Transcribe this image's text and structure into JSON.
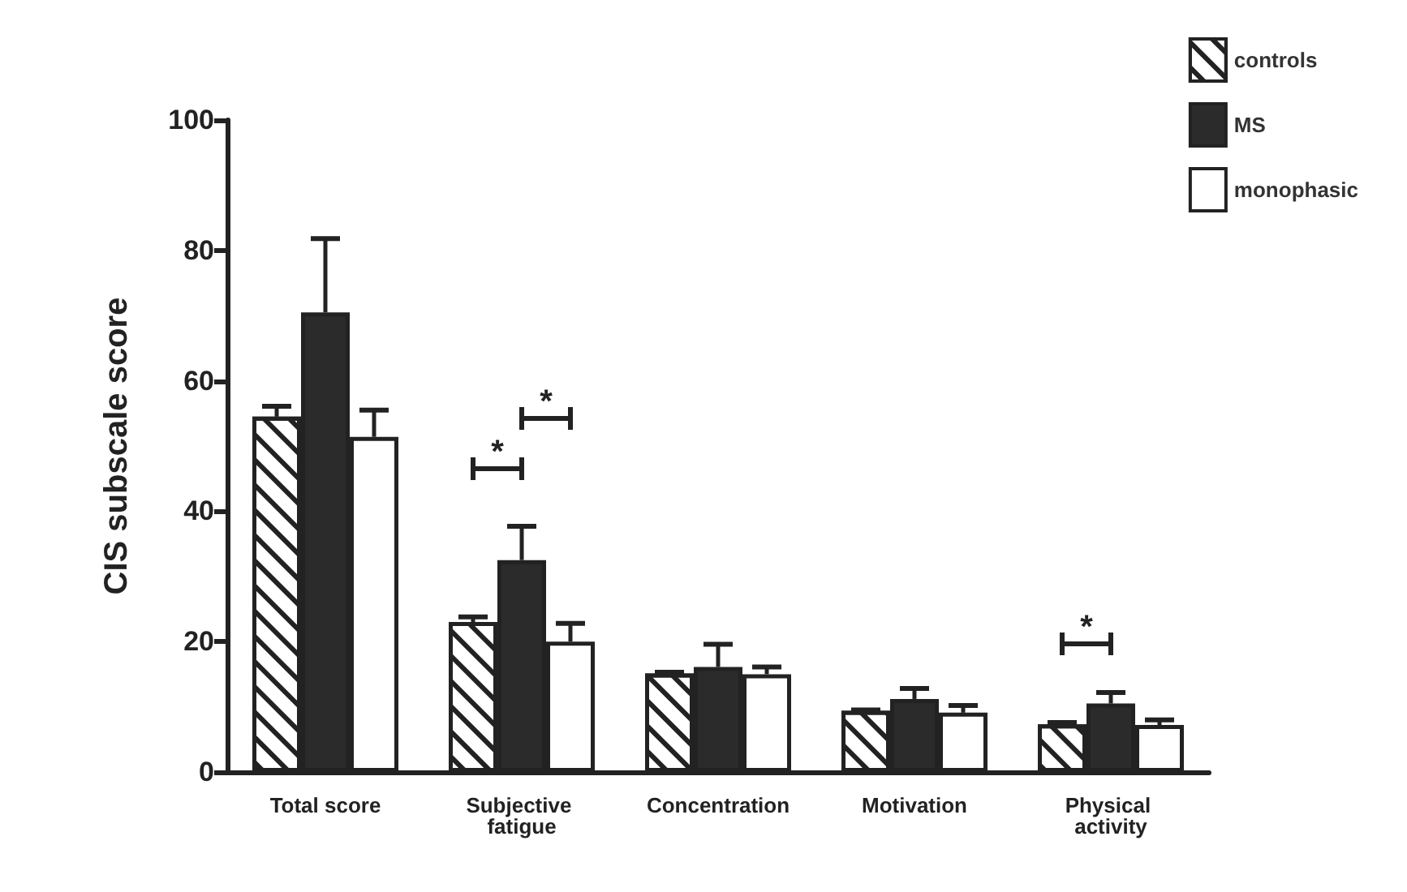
{
  "chart_data": {
    "type": "bar",
    "ylabel": "CIS subscale score",
    "categories": [
      "Total score",
      "Subjective fatigue",
      "Concentration",
      "Motivation",
      "Physical activity"
    ],
    "series": [
      {
        "name": "controls",
        "color": "#ffffff",
        "values": [
          54.5,
          23.0,
          15.1,
          9.4,
          7.3
        ],
        "errors": [
          [
            54.5,
            56.1
          ],
          [
            23.0,
            23.8
          ],
          [
            15.1,
            15.3
          ],
          [
            9.4,
            9.5
          ],
          [
            7.3,
            7.6
          ]
        ]
      },
      {
        "name": "MS",
        "color": "#2b2b2b",
        "values": [
          70.5,
          32.5,
          16.1,
          11.2,
          10.5
        ],
        "errors": [
          [
            70.5,
            81.8
          ],
          [
            32.5,
            37.7
          ],
          [
            16.1,
            19.6
          ],
          [
            11.2,
            12.8
          ],
          [
            10.5,
            12.2
          ]
        ]
      },
      {
        "name": "monophasic",
        "color": "#ffffff",
        "values": [
          51.4,
          20.0,
          15.0,
          9.1,
          7.2
        ],
        "errors": [
          [
            51.4,
            55.5
          ],
          [
            20.0,
            22.8
          ],
          [
            15.0,
            16.1
          ],
          [
            9.1,
            10.2
          ],
          [
            7.2,
            8.0
          ]
        ]
      }
    ],
    "ylim": [
      0,
      100
    ],
    "yticks": [
      0,
      20,
      40,
      60,
      80,
      100
    ],
    "grid": false,
    "legend": "top right",
    "annotations": [
      "*",
      "*",
      "*"
    ]
  }
}
